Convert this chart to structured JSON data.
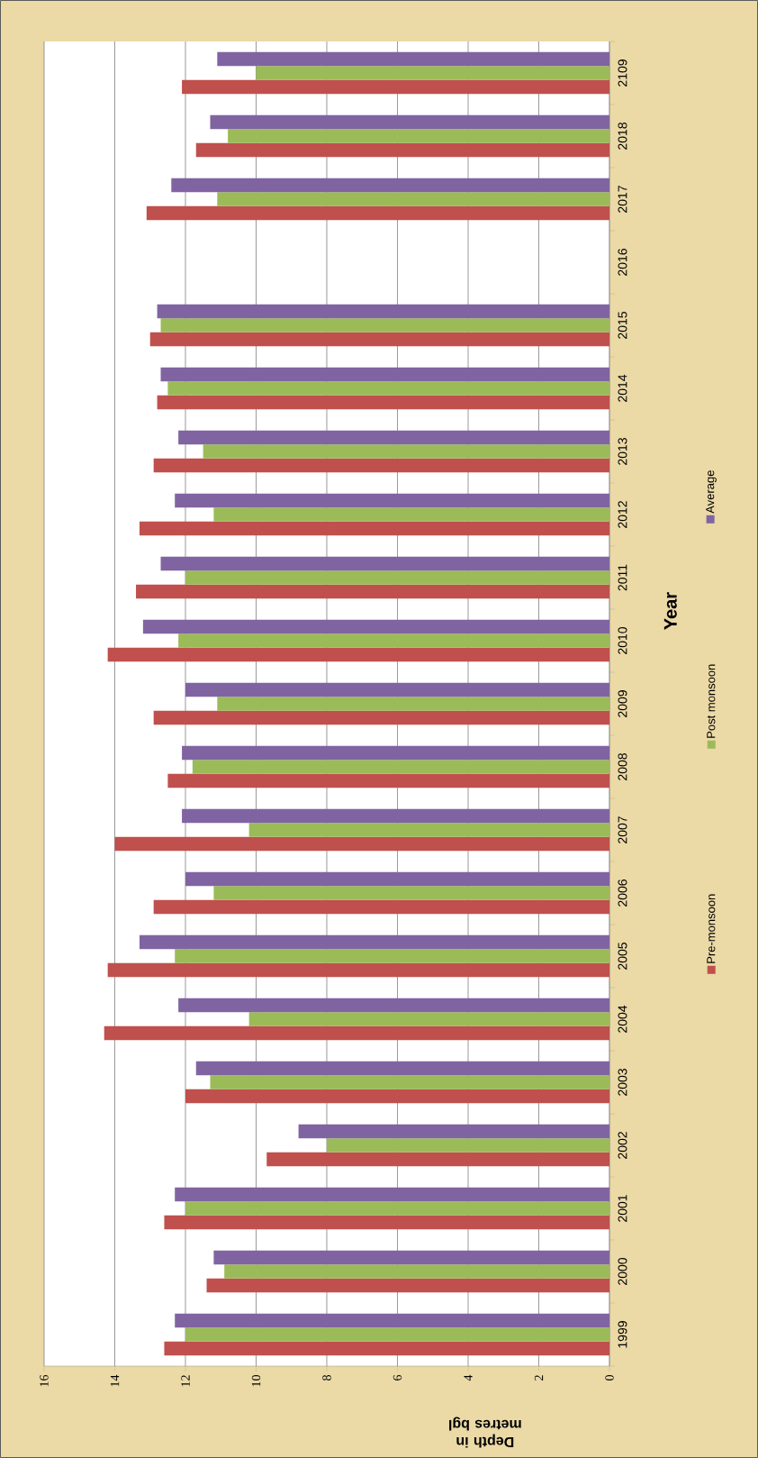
{
  "chart_data": {
    "type": "bar",
    "orientation": "horizontal",
    "xlabel": "Depth in metres bgl",
    "ylabel": "Year",
    "categories": [
      "2109",
      "2018",
      "2017",
      "2016",
      "2015",
      "2014",
      "2013",
      "2012",
      "2011",
      "2010",
      "2009",
      "2008",
      "2007",
      "2006",
      "2005",
      "2004",
      "2003",
      "2002",
      "2001",
      "2000",
      "1999"
    ],
    "series": [
      {
        "name": "Pre-monsoon",
        "color": "#c0504d",
        "values": [
          12.1,
          11.7,
          13.1,
          null,
          13.0,
          12.8,
          12.9,
          13.3,
          13.4,
          14.2,
          12.9,
          12.5,
          14.0,
          12.9,
          14.2,
          14.3,
          12.0,
          9.7,
          12.6,
          11.4,
          12.6
        ]
      },
      {
        "name": "Post monsoon",
        "color": "#9bbb59",
        "values": [
          10.0,
          10.8,
          11.1,
          null,
          12.7,
          12.5,
          11.5,
          11.2,
          12.0,
          12.2,
          11.1,
          11.8,
          10.2,
          11.2,
          12.3,
          10.2,
          11.3,
          8.0,
          12.0,
          10.9,
          12.0
        ]
      },
      {
        "name": "Average",
        "color": "#8064a2",
        "values": [
          11.1,
          11.3,
          12.4,
          null,
          12.8,
          12.7,
          12.2,
          12.3,
          12.7,
          13.2,
          12.0,
          12.1,
          12.1,
          12.0,
          13.3,
          12.2,
          11.7,
          8.8,
          12.3,
          11.2,
          12.3
        ]
      }
    ],
    "xlim": [
      16,
      0
    ],
    "xticks": [
      0,
      2,
      4,
      6,
      8,
      10,
      12,
      14,
      16
    ],
    "grid": "x",
    "legend": "right"
  }
}
